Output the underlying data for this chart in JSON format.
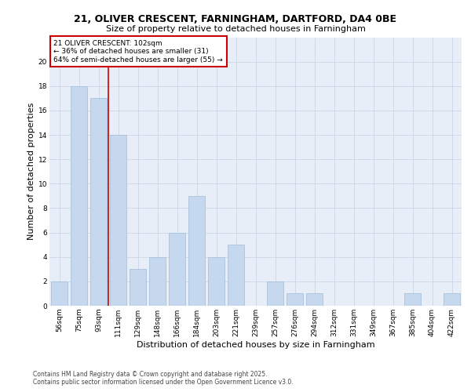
{
  "title1": "21, OLIVER CRESCENT, FARNINGHAM, DARTFORD, DA4 0BE",
  "title2": "Size of property relative to detached houses in Farningham",
  "xlabel": "Distribution of detached houses by size in Farningham",
  "ylabel": "Number of detached properties",
  "categories": [
    "56sqm",
    "75sqm",
    "93sqm",
    "111sqm",
    "129sqm",
    "148sqm",
    "166sqm",
    "184sqm",
    "203sqm",
    "221sqm",
    "239sqm",
    "257sqm",
    "276sqm",
    "294sqm",
    "312sqm",
    "331sqm",
    "349sqm",
    "367sqm",
    "385sqm",
    "404sqm",
    "422sqm"
  ],
  "values": [
    2,
    18,
    17,
    14,
    3,
    4,
    6,
    9,
    4,
    5,
    0,
    2,
    1,
    1,
    0,
    0,
    0,
    0,
    1,
    0,
    1
  ],
  "bar_color": "#c5d8ed",
  "bar_edge_color": "#a0bcd8",
  "grid_color": "#ccd6e8",
  "background_color": "#e8eef8",
  "annotation_text": "21 OLIVER CRESCENT: 102sqm\n← 36% of detached houses are smaller (31)\n64% of semi-detached houses are larger (55) →",
  "annotation_box_color": "#ffffff",
  "annotation_border_color": "#cc0000",
  "vline_x_index": 2.5,
  "vline_color": "#cc0000",
  "ylim": [
    0,
    22
  ],
  "yticks": [
    0,
    2,
    4,
    6,
    8,
    10,
    12,
    14,
    16,
    18,
    20
  ],
  "footer_line1": "Contains HM Land Registry data © Crown copyright and database right 2025.",
  "footer_line2": "Contains public sector information licensed under the Open Government Licence v3.0.",
  "title_fontsize": 9,
  "subtitle_fontsize": 8,
  "axis_label_fontsize": 8,
  "tick_fontsize": 6.5,
  "annotation_fontsize": 6.5,
  "footer_fontsize": 5.5
}
